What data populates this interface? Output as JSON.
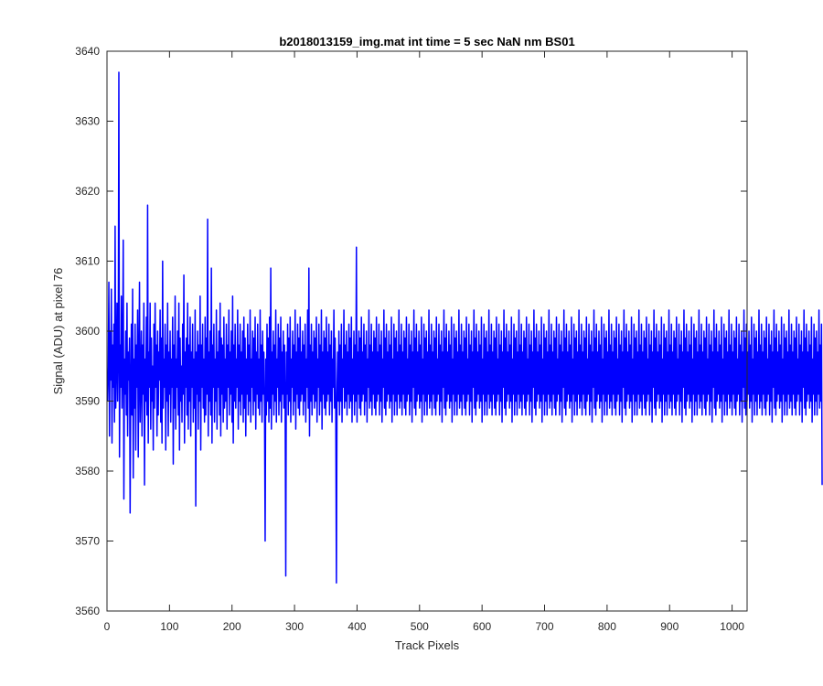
{
  "chart_data": {
    "type": "line",
    "title": "b2018013159_img.mat int time = 5 sec  NaN nm BS01",
    "xlabel": "Track Pixels",
    "ylabel": "Signal (ADU) at pixel 76",
    "xlim": [
      0,
      1024
    ],
    "ylim": [
      3560,
      3640
    ],
    "x_ticks": [
      0,
      100,
      200,
      300,
      400,
      500,
      600,
      700,
      800,
      900,
      1000
    ],
    "y_ticks": [
      3560,
      3570,
      3580,
      3590,
      3600,
      3610,
      3620,
      3630,
      3640
    ],
    "x_tick_labels": [
      "0",
      "100",
      "200",
      "300",
      "400",
      "500",
      "600",
      "700",
      "800",
      "900",
      "1000"
    ],
    "y_tick_labels": [
      "3560",
      "3570",
      "3580",
      "3590",
      "3600",
      "3610",
      "3620",
      "3630",
      "3640"
    ],
    "grid": false,
    "line_color": "#0000ff",
    "series": [
      {
        "x_start": 1,
        "x_step": 1,
        "values": [
          3590,
          3595,
          3607,
          3585,
          3600,
          3593,
          3606,
          3584,
          3598,
          3592,
          3601,
          3587,
          3615,
          3589,
          3595,
          3604,
          3590,
          3597,
          3637,
          3582,
          3598,
          3592,
          3605,
          3589,
          3596,
          3613,
          3576,
          3596,
          3591,
          3600,
          3588,
          3604,
          3585,
          3597,
          3593,
          3599,
          3574,
          3592,
          3601,
          3588,
          3606,
          3579,
          3596,
          3589,
          3601,
          3583,
          3598,
          3592,
          3603,
          3582,
          3595,
          3607,
          3587,
          3593,
          3600,
          3585,
          3598,
          3591,
          3604,
          3578,
          3596,
          3590,
          3602,
          3588,
          3618,
          3584,
          3597,
          3592,
          3604,
          3586,
          3599,
          3590,
          3595,
          3583,
          3601,
          3589,
          3604,
          3592,
          3598,
          3585,
          3600,
          3588,
          3597,
          3593,
          3603,
          3587,
          3599,
          3584,
          3610,
          3589,
          3596,
          3592,
          3601,
          3583,
          3598,
          3590,
          3604,
          3585,
          3597,
          3591,
          3600,
          3587,
          3596,
          3592,
          3602,
          3581,
          3598,
          3589,
          3605,
          3586,
          3596,
          3592,
          3600,
          3588,
          3604,
          3583,
          3599,
          3590,
          3595,
          3587,
          3601,
          3591,
          3608,
          3584,
          3597,
          3592,
          3599,
          3588,
          3604,
          3586,
          3598,
          3590,
          3602,
          3585,
          3597,
          3592,
          3601,
          3587,
          3596,
          3589,
          3603,
          3575,
          3597,
          3591,
          3600,
          3586,
          3598,
          3590,
          3605,
          3583,
          3598,
          3592,
          3601,
          3589,
          3596,
          3587,
          3602,
          3588,
          3599,
          3591,
          3616,
          3585,
          3597,
          3590,
          3600,
          3588,
          3609,
          3584,
          3598,
          3592,
          3601,
          3587,
          3596,
          3590,
          3603,
          3586,
          3597,
          3592,
          3600,
          3588,
          3604,
          3585,
          3599,
          3591,
          3598,
          3587,
          3602,
          3589,
          3596,
          3590,
          3601,
          3586,
          3598,
          3592,
          3603,
          3588,
          3597,
          3591,
          3600,
          3587,
          3605,
          3584,
          3598,
          3590,
          3601,
          3589,
          3596,
          3592,
          3603,
          3586,
          3598,
          3590,
          3601,
          3588,
          3597,
          3591,
          3600,
          3587,
          3602,
          3589,
          3599,
          3585,
          3596,
          3591,
          3601,
          3588,
          3598,
          3590,
          3603,
          3587,
          3596,
          3592,
          3600,
          3588,
          3599,
          3590,
          3602,
          3586,
          3597,
          3591,
          3601,
          3589,
          3596,
          3588,
          3603,
          3590,
          3598,
          3587,
          3600,
          3591,
          3597,
          3589,
          3570,
          3596,
          3588,
          3601,
          3590,
          3599,
          3587,
          3602,
          3589,
          3609,
          3586,
          3597,
          3591,
          3600,
          3588,
          3598,
          3590,
          3603,
          3587,
          3596,
          3592,
          3601,
          3588,
          3599,
          3590,
          3602,
          3587,
          3597,
          3591,
          3600,
          3589,
          3598,
          3590,
          3565,
          3597,
          3591,
          3601,
          3588,
          3599,
          3590,
          3602,
          3587,
          3596,
          3592,
          3600,
          3588,
          3598,
          3590,
          3603,
          3586,
          3597,
          3591,
          3601,
          3589,
          3599,
          3588,
          3602,
          3590,
          3597,
          3591,
          3600,
          3588,
          3598,
          3590,
          3601,
          3587,
          3596,
          3592,
          3603,
          3589,
          3609,
          3585,
          3598,
          3590,
          3601,
          3588,
          3597,
          3591,
          3600,
          3589,
          3599,
          3590,
          3602,
          3587,
          3596,
          3592,
          3601,
          3588,
          3598,
          3590,
          3603,
          3586,
          3597,
          3591,
          3600,
          3589,
          3599,
          3588,
          3602,
          3590,
          3597,
          3591,
          3601,
          3588,
          3598,
          3590,
          3600,
          3587,
          3596,
          3592,
          3603,
          3589,
          3599,
          3588,
          3564,
          3591,
          3597,
          3590,
          3600,
          3588,
          3598,
          3590,
          3601,
          3587,
          3596,
          3592,
          3603,
          3589,
          3598,
          3590,
          3600,
          3588,
          3597,
          3591,
          3601,
          3589,
          3599,
          3590,
          3602,
          3587,
          3596,
          3591,
          3600,
          3588,
          3598,
          3590,
          3612,
          3587,
          3597,
          3591,
          3600,
          3589,
          3599,
          3588,
          3602,
          3590,
          3597,
          3591,
          3601,
          3588,
          3598,
          3590,
          3600,
          3587,
          3596,
          3592,
          3603,
          3589,
          3598,
          3590,
          3601,
          3588,
          3597,
          3591,
          3600,
          3589,
          3599,
          3588,
          3602,
          3590,
          3597,
          3591,
          3601,
          3588,
          3598,
          3590,
          3600,
          3587,
          3596,
          3592,
          3603,
          3589,
          3599,
          3588,
          3601,
          3590,
          3597,
          3591,
          3600,
          3589,
          3598,
          3590,
          3602,
          3587,
          3596,
          3591,
          3601,
          3588,
          3599,
          3590,
          3600,
          3588,
          3597,
          3591,
          3603,
          3589,
          3598,
          3590,
          3601,
          3588,
          3597,
          3591,
          3600,
          3589,
          3599,
          3588,
          3602,
          3590,
          3596,
          3591,
          3601,
          3588,
          3598,
          3590,
          3600,
          3587,
          3597,
          3592,
          3603,
          3589,
          3599,
          3588,
          3601,
          3590,
          3597,
          3591,
          3600,
          3589,
          3598,
          3590,
          3602,
          3587,
          3596,
          3591,
          3601,
          3588,
          3599,
          3590,
          3600,
          3588,
          3597,
          3591,
          3603,
          3589,
          3598,
          3590,
          3601,
          3588,
          3597,
          3591,
          3600,
          3589,
          3599,
          3588,
          3602,
          3590,
          3596,
          3591,
          3601,
          3588,
          3598,
          3590,
          3600,
          3587,
          3597,
          3592,
          3603,
          3589,
          3599,
          3588,
          3601,
          3590,
          3597,
          3591,
          3600,
          3589,
          3598,
          3590,
          3602,
          3587,
          3596,
          3591,
          3601,
          3588,
          3599,
          3590,
          3600,
          3588,
          3597,
          3591,
          3603,
          3589,
          3598,
          3590,
          3601,
          3588,
          3597,
          3591,
          3600,
          3589,
          3599,
          3588,
          3602,
          3590,
          3596,
          3591,
          3601,
          3588,
          3598,
          3590,
          3600,
          3587,
          3597,
          3592,
          3603,
          3589,
          3599,
          3588,
          3601,
          3590,
          3597,
          3591,
          3600,
          3589,
          3598,
          3590,
          3602,
          3587,
          3596,
          3591,
          3601,
          3588,
          3599,
          3590,
          3600,
          3588,
          3597,
          3591,
          3603,
          3589,
          3598,
          3590,
          3601,
          3588,
          3597,
          3591,
          3600,
          3589,
          3599,
          3588,
          3602,
          3590,
          3596,
          3591,
          3601,
          3588,
          3598,
          3590,
          3600,
          3587,
          3597,
          3592,
          3603,
          3589,
          3599,
          3588,
          3601,
          3590,
          3597,
          3591,
          3600,
          3589,
          3598,
          3590,
          3602,
          3587,
          3596,
          3591,
          3601,
          3588,
          3599,
          3590,
          3600,
          3588,
          3597,
          3591,
          3603,
          3589,
          3598,
          3590,
          3601,
          3588,
          3597,
          3591,
          3600,
          3589,
          3599,
          3588,
          3602,
          3590,
          3596,
          3591,
          3601,
          3588,
          3598,
          3590,
          3600,
          3587,
          3597,
          3592,
          3603,
          3589,
          3599,
          3588,
          3601,
          3590,
          3597,
          3591,
          3600,
          3589,
          3598,
          3590,
          3602,
          3587,
          3596,
          3591,
          3601,
          3588,
          3599,
          3590,
          3600,
          3588,
          3597,
          3591,
          3603,
          3589,
          3598,
          3590,
          3601,
          3588,
          3597,
          3591,
          3600,
          3589,
          3599,
          3588,
          3602,
          3590,
          3596,
          3591,
          3601,
          3588,
          3598,
          3590,
          3600,
          3587,
          3597,
          3592,
          3603,
          3589,
          3599,
          3588,
          3601,
          3590,
          3597,
          3591,
          3600,
          3589,
          3598,
          3590,
          3602,
          3587,
          3596,
          3591,
          3601,
          3588,
          3599,
          3590,
          3600,
          3588,
          3597,
          3591,
          3603,
          3589,
          3598,
          3590,
          3601,
          3588,
          3597,
          3591,
          3600,
          3589,
          3599,
          3588,
          3602,
          3590,
          3596,
          3591,
          3601,
          3588,
          3598,
          3590,
          3600,
          3587,
          3597,
          3592,
          3603,
          3589,
          3599,
          3588,
          3601,
          3590,
          3597,
          3591,
          3600,
          3589,
          3598,
          3590,
          3602,
          3587,
          3596,
          3591,
          3601,
          3588,
          3599,
          3590,
          3600,
          3588,
          3597,
          3591,
          3603,
          3589,
          3598,
          3590,
          3601,
          3588,
          3597,
          3591,
          3600,
          3589,
          3599,
          3588,
          3602,
          3590,
          3596,
          3591,
          3601,
          3588,
          3598,
          3590,
          3600,
          3587,
          3597,
          3592,
          3603,
          3589,
          3599,
          3588,
          3601,
          3590,
          3597,
          3591,
          3600,
          3589,
          3598,
          3590,
          3602,
          3587,
          3596,
          3591,
          3601,
          3588,
          3599,
          3590,
          3600,
          3588,
          3597,
          3591,
          3603,
          3589,
          3598,
          3590,
          3601,
          3588,
          3597,
          3591,
          3600,
          3589,
          3599,
          3588,
          3602,
          3590,
          3596,
          3591,
          3601,
          3588,
          3598,
          3590,
          3600,
          3587,
          3597,
          3592,
          3603,
          3589,
          3599,
          3588,
          3601,
          3590,
          3597,
          3591,
          3600,
          3589,
          3598,
          3590,
          3602,
          3587,
          3596,
          3591,
          3601,
          3588,
          3599,
          3590,
          3600,
          3588,
          3597,
          3591,
          3603,
          3589,
          3598,
          3590,
          3601,
          3588,
          3597,
          3591,
          3600,
          3589,
          3599,
          3588,
          3602,
          3590,
          3596,
          3591,
          3601,
          3588,
          3598,
          3590,
          3600,
          3587,
          3597,
          3592,
          3603,
          3589,
          3599,
          3588,
          3601,
          3590,
          3597,
          3591,
          3600,
          3589,
          3598,
          3590,
          3602,
          3587,
          3596,
          3591,
          3601,
          3588,
          3599,
          3590,
          3600,
          3588,
          3597,
          3591,
          3603,
          3589,
          3598,
          3590,
          3601,
          3588,
          3597,
          3591,
          3600,
          3589,
          3599,
          3588,
          3602,
          3590,
          3596,
          3591,
          3601,
          3588,
          3598,
          3590,
          3600,
          3587,
          3597,
          3592,
          3603,
          3589,
          3599,
          3588,
          3601,
          3590,
          3597,
          3591,
          3600,
          3589,
          3598,
          3590,
          3602,
          3587,
          3596,
          3591,
          3601,
          3588,
          3599,
          3590,
          3600,
          3588,
          3597,
          3591,
          3603,
          3589,
          3598,
          3590,
          3601,
          3588,
          3597,
          3591,
          3600,
          3589,
          3599,
          3588,
          3602,
          3590,
          3596,
          3591,
          3601,
          3588,
          3598,
          3590,
          3600,
          3587,
          3597,
          3592,
          3603,
          3589,
          3599,
          3588,
          3601,
          3590,
          3597,
          3591,
          3600,
          3589,
          3598,
          3590,
          3602,
          3587,
          3596,
          3591,
          3601,
          3588,
          3599,
          3590,
          3600,
          3588,
          3597,
          3591,
          3603,
          3589,
          3598,
          3590,
          3601,
          3588,
          3597,
          3591,
          3600,
          3589,
          3599,
          3588,
          3602,
          3590,
          3596,
          3591,
          3601,
          3588,
          3598,
          3590,
          3600,
          3587,
          3597,
          3592,
          3603,
          3589,
          3599,
          3588,
          3601,
          3590,
          3597,
          3591,
          3600,
          3589,
          3598,
          3590,
          3602,
          3587,
          3596,
          3591,
          3601,
          3588,
          3599,
          3590,
          3600,
          3588,
          3597,
          3591,
          3603,
          3589,
          3598,
          3590,
          3601,
          3588,
          3597,
          3591,
          3600,
          3589,
          3599,
          3588,
          3602,
          3590,
          3596,
          3591,
          3601,
          3588,
          3598,
          3590,
          3600,
          3587,
          3597,
          3592,
          3603,
          3589,
          3599,
          3588,
          3601,
          3590,
          3597,
          3591,
          3600,
          3589,
          3598,
          3590,
          3602,
          3587,
          3596,
          3591,
          3601,
          3588,
          3599,
          3590,
          3600,
          3588,
          3597,
          3591,
          3603,
          3589,
          3598,
          3590,
          3601,
          3578
        ]
      }
    ]
  }
}
